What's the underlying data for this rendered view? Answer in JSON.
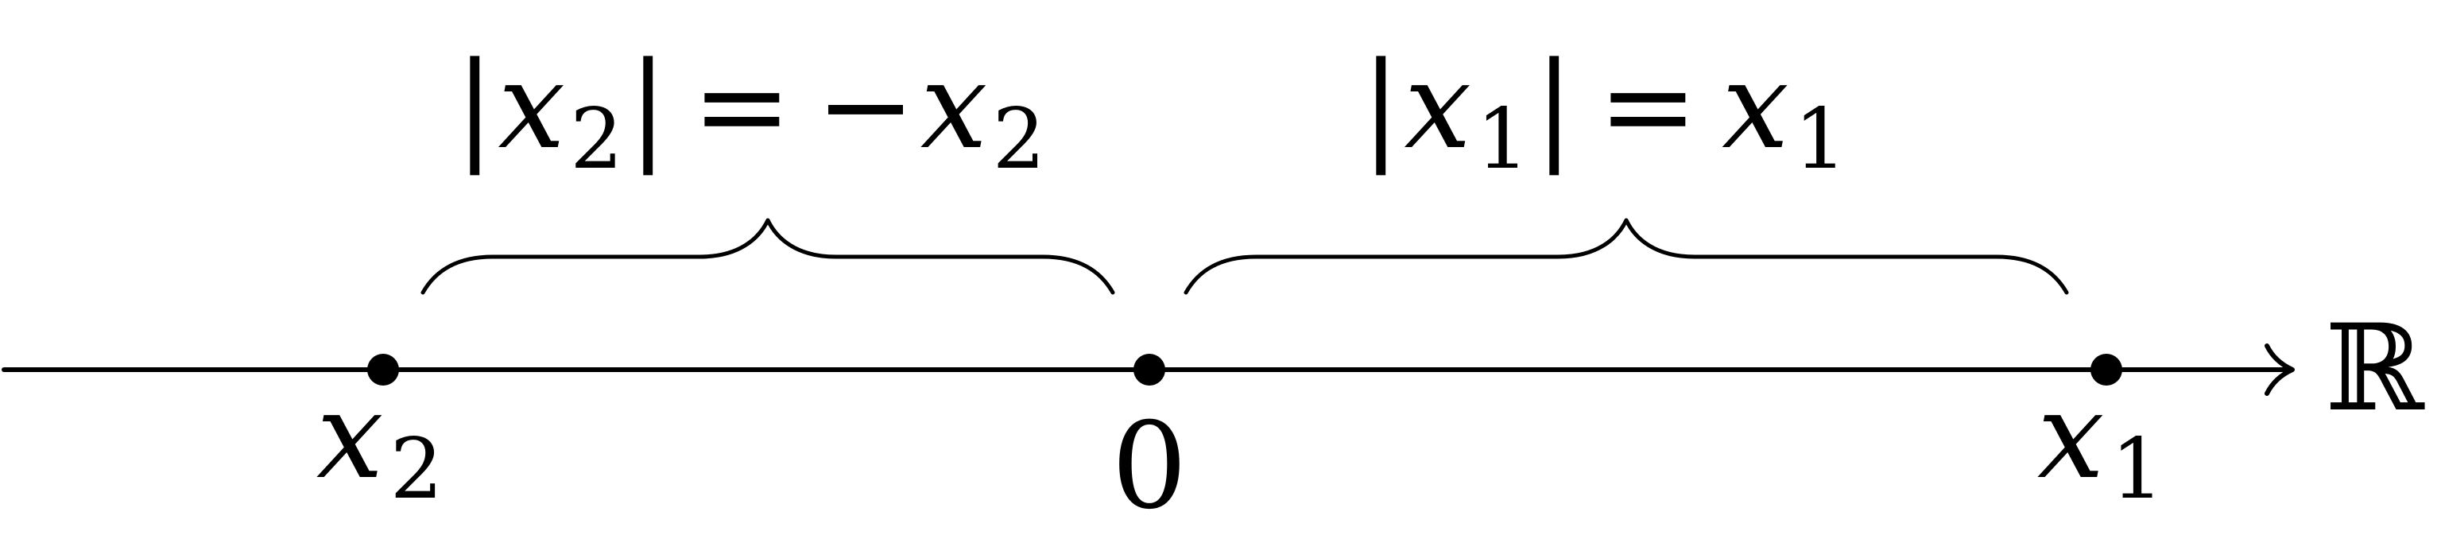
{
  "diagram": {
    "axis_label": "ℝ",
    "points": [
      {
        "id": "x2",
        "base": "x",
        "sub": "2"
      },
      {
        "id": "zero",
        "label": "0"
      },
      {
        "id": "x1",
        "base": "x",
        "sub": "1"
      }
    ],
    "braces": [
      {
        "id": "left",
        "lhs_base": "x",
        "lhs_sub": "2",
        "equals": "=",
        "rhs_sign": "−",
        "rhs_base": "x",
        "rhs_sub": "2",
        "bar": "|"
      },
      {
        "id": "right",
        "lhs_base": "x",
        "lhs_sub": "1",
        "equals": "=",
        "rhs_base": "x",
        "rhs_sub": "1",
        "bar": "|"
      }
    ]
  }
}
